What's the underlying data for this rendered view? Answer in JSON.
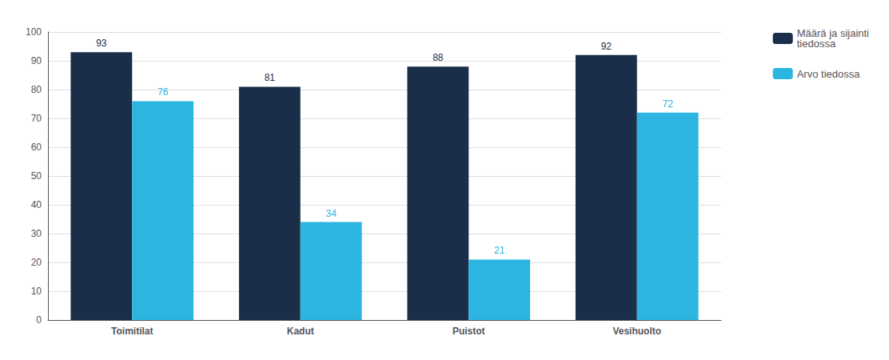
{
  "chart_data": {
    "type": "bar",
    "categories": [
      "Toimitilat",
      "Kadut",
      "Puistot",
      "Vesihuolto"
    ],
    "series": [
      {
        "name": "Määrä ja sijainti\ntiedossa",
        "color": "#1a2e4a",
        "values": [
          93,
          81,
          88,
          92
        ]
      },
      {
        "name": "Arvo tiedossa",
        "color": "#2bb5e0",
        "values": [
          76,
          34,
          21,
          72
        ]
      }
    ],
    "ylim": [
      0,
      100
    ],
    "yticks": [
      0,
      10,
      20,
      30,
      40,
      50,
      60,
      70,
      80,
      90,
      100
    ],
    "grid": true,
    "legend": "right",
    "data_labels": true
  }
}
